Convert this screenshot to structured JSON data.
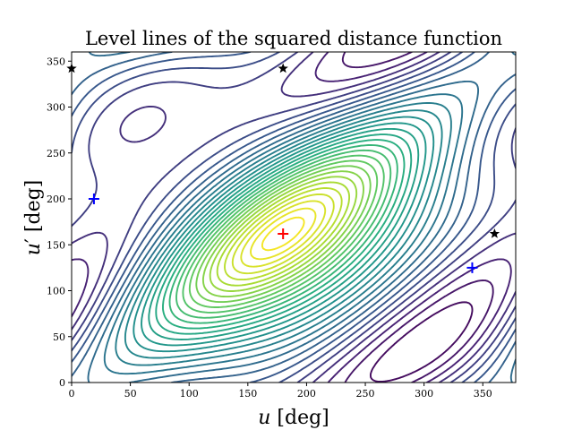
{
  "chart_data": {
    "type": "contour",
    "title": "Level lines of the squared distance function",
    "xlabel": {
      "var": "u",
      "unit": " [deg]"
    },
    "ylabel": {
      "var": "u",
      "prime": "′",
      "unit": " [deg]"
    },
    "xlim": [
      0,
      378
    ],
    "ylim": [
      0,
      360
    ],
    "xticks": [
      0,
      50,
      100,
      150,
      200,
      250,
      300,
      350
    ],
    "yticks": [
      0,
      50,
      100,
      150,
      200,
      250,
      300,
      350
    ],
    "colormap": "viridis",
    "grid": false,
    "legend": "none",
    "markers": [
      {
        "kind": "plus",
        "color": "#ff0000",
        "x": 180,
        "y": 162
      },
      {
        "kind": "plus",
        "color": "#0000ff",
        "x": 19,
        "y": 200
      },
      {
        "kind": "plus",
        "color": "#0000ff",
        "x": 341,
        "y": 125
      },
      {
        "kind": "star",
        "color": "#000000",
        "x": 180,
        "y": 342
      },
      {
        "kind": "star",
        "color": "#000000",
        "x": 0,
        "y": 342
      },
      {
        "kind": "star",
        "color": "#000000",
        "x": 360,
        "y": 162
      }
    ]
  }
}
